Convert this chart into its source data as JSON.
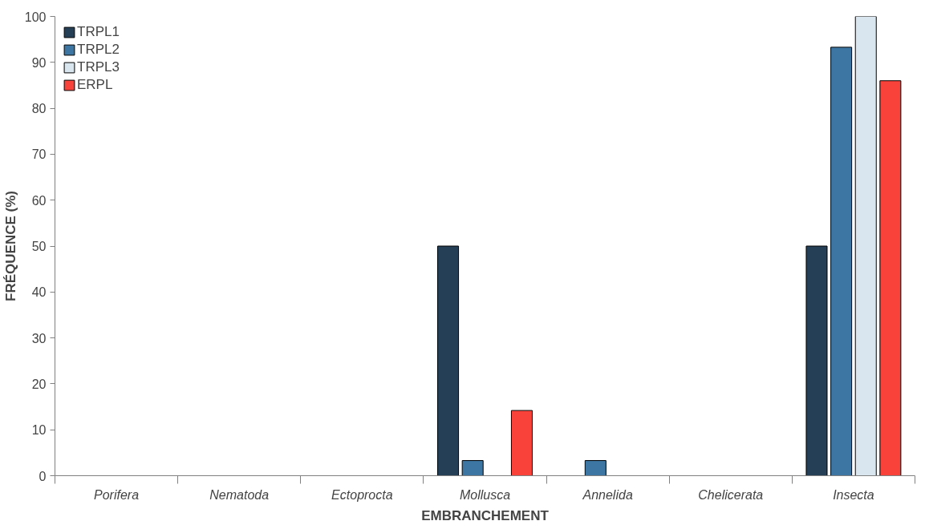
{
  "chart_data": {
    "type": "bar",
    "xlabel": "EMBRANCHEMENT",
    "ylabel": "FRÉQUENCE (%)",
    "categories": [
      "Porifera",
      "Nematoda",
      "Ectoprocta",
      "Mollusca",
      "Annelida",
      "Chelicerata",
      "Insecta"
    ],
    "series": [
      {
        "name": "TRPL1",
        "color": "#243f56",
        "values": [
          null,
          null,
          null,
          50,
          null,
          null,
          50
        ]
      },
      {
        "name": "TRPL2",
        "color": "#3d76a2",
        "values": [
          null,
          null,
          null,
          3.3,
          3.3,
          null,
          93.3
        ]
      },
      {
        "name": "TRPL3",
        "color": "#d9e6ef",
        "values": [
          null,
          null,
          null,
          null,
          null,
          null,
          100
        ]
      },
      {
        "name": "ERPL",
        "color": "#f9423a",
        "values": [
          null,
          null,
          null,
          14.2,
          null,
          null,
          86
        ]
      }
    ],
    "ylim": [
      0,
      100
    ],
    "yticks": [
      0,
      10,
      20,
      30,
      40,
      50,
      60,
      70,
      80,
      90,
      100
    ],
    "grid": false,
    "legend": "top left"
  }
}
